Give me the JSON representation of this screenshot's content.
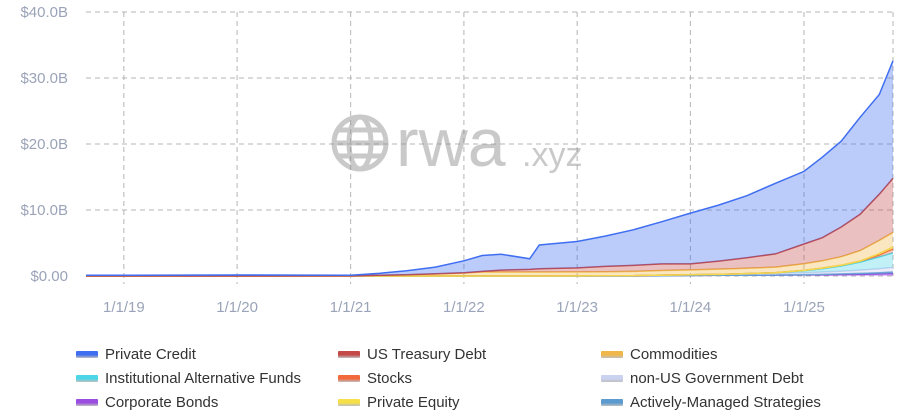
{
  "watermark": {
    "brand": "rwa",
    "suffix": ".xyz",
    "icon": "globe-icon"
  },
  "chart_data": {
    "type": "area",
    "stacked": true,
    "grid": true,
    "x_ticks": [
      "1/1/19",
      "1/1/20",
      "1/1/21",
      "1/1/22",
      "1/1/23",
      "1/1/24",
      "1/1/25"
    ],
    "y_ticks": [
      "$0.00",
      "$10.0B",
      "$20.0B",
      "$30.0B",
      "$40.0B"
    ],
    "xlim": [
      "2018-09-01",
      "2025-10-15"
    ],
    "ylim": [
      0,
      40
    ],
    "x": [
      "2018-09-01",
      "2020-01-01",
      "2021-01-01",
      "2021-04-01",
      "2021-07-01",
      "2021-10-01",
      "2022-01-01",
      "2022-03-01",
      "2022-05-01",
      "2022-08-01",
      "2022-09-01",
      "2023-01-01",
      "2023-04-01",
      "2023-07-01",
      "2023-10-01",
      "2024-01-01",
      "2024-04-01",
      "2024-07-01",
      "2024-10-01",
      "2025-01-01",
      "2025-03-01",
      "2025-05-01",
      "2025-07-01",
      "2025-09-01",
      "2025-10-15"
    ],
    "series": [
      {
        "name": "Corporate Bonds",
        "color": "#9b4de0",
        "values": [
          0,
          0,
          0,
          0,
          0,
          0,
          0,
          0,
          0,
          0,
          0,
          0,
          0,
          0,
          0.05,
          0.08,
          0.1,
          0.12,
          0.15,
          0.2,
          0.2,
          0.22,
          0.25,
          0.3,
          0.35
        ]
      },
      {
        "name": "Actively-Managed Strategies",
        "color": "#5b9bd0",
        "values": [
          0,
          0,
          0,
          0,
          0,
          0,
          0,
          0,
          0,
          0,
          0,
          0,
          0,
          0,
          0,
          0,
          0,
          0,
          0,
          0,
          0.05,
          0.1,
          0.15,
          0.2,
          0.25
        ]
      },
      {
        "name": "non-US Government Debt",
        "color": "#c9d2f0",
        "values": [
          0,
          0,
          0,
          0,
          0,
          0,
          0,
          0,
          0,
          0,
          0,
          0.02,
          0.05,
          0.05,
          0.08,
          0.1,
          0.15,
          0.2,
          0.25,
          0.3,
          0.35,
          0.4,
          0.5,
          0.6,
          0.7
        ]
      },
      {
        "name": "Institutional Alternative Funds",
        "color": "#4dd6e8",
        "values": [
          0,
          0,
          0,
          0,
          0,
          0,
          0,
          0,
          0,
          0,
          0,
          0,
          0,
          0,
          0,
          0,
          0,
          0.05,
          0.1,
          0.3,
          0.5,
          0.8,
          1.2,
          1.8,
          2.2
        ]
      },
      {
        "name": "Stocks",
        "color": "#f26a3c",
        "values": [
          0,
          0,
          0,
          0,
          0,
          0,
          0,
          0,
          0,
          0,
          0,
          0,
          0,
          0,
          0,
          0,
          0,
          0,
          0,
          0.05,
          0.1,
          0.1,
          0.15,
          0.3,
          0.6
        ]
      },
      {
        "name": "Private Equity",
        "color": "#f5e04a",
        "values": [
          0,
          0,
          0,
          0,
          0,
          0,
          0,
          0,
          0,
          0,
          0,
          0,
          0,
          0,
          0,
          0,
          0,
          0,
          0,
          0,
          0,
          0,
          0,
          0.2,
          0.3
        ]
      },
      {
        "name": "Commodities",
        "color": "#f0b84a",
        "values": [
          0,
          0,
          0.02,
          0.1,
          0.2,
          0.3,
          0.45,
          0.6,
          0.6,
          0.6,
          0.6,
          0.6,
          0.6,
          0.65,
          0.7,
          0.75,
          0.8,
          0.8,
          0.85,
          1.0,
          1.1,
          1.3,
          1.6,
          2.0,
          2.2
        ]
      },
      {
        "name": "US Treasury Debt",
        "color": "#c44a4a",
        "values": [
          0,
          0,
          0,
          0,
          0,
          0.05,
          0.05,
          0.1,
          0.3,
          0.4,
          0.5,
          0.6,
          0.8,
          0.9,
          1.0,
          0.9,
          1.2,
          1.6,
          2.0,
          3.0,
          3.5,
          4.5,
          5.5,
          7.0,
          8.2
        ]
      },
      {
        "name": "Private Credit",
        "color": "#3f6ef0",
        "values": [
          0.1,
          0.15,
          0.1,
          0.3,
          0.6,
          1.0,
          1.8,
          2.4,
          2.4,
          1.6,
          3.6,
          4.0,
          4.6,
          5.4,
          6.4,
          7.7,
          8.5,
          9.4,
          10.7,
          11.0,
          12.2,
          13.0,
          14.7,
          15.1,
          17.8
        ]
      }
    ]
  },
  "legend": [
    {
      "label": "Private Credit",
      "color": "#3f6ef0"
    },
    {
      "label": "US Treasury Debt",
      "color": "#c44a4a"
    },
    {
      "label": "Commodities",
      "color": "#f0b84a"
    },
    {
      "label": "Institutional Alternative Funds",
      "color": "#4dd6e8"
    },
    {
      "label": "Stocks",
      "color": "#f26a3c"
    },
    {
      "label": "non-US Government Debt",
      "color": "#c9d2f0"
    },
    {
      "label": "Corporate Bonds",
      "color": "#9b4de0"
    },
    {
      "label": "Private Equity",
      "color": "#f5e04a"
    },
    {
      "label": "Actively-Managed Strategies",
      "color": "#5b9bd0"
    }
  ]
}
